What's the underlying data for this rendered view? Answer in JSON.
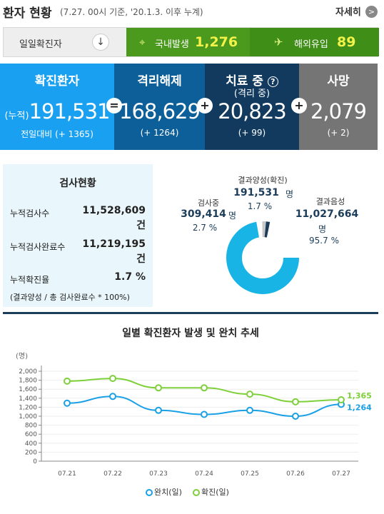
{
  "header": {
    "title": "환자 현황",
    "subtitle": "(7.27. 00시 기준, '20.1.3. 이후 누계)",
    "more_label": "자세히"
  },
  "daily": {
    "label": "일일확진자",
    "domestic_label": "국내발생",
    "domestic_value": "1,276",
    "overseas_label": "해외유입",
    "overseas_value": "89"
  },
  "stats": {
    "confirmed": {
      "title": "확진환자",
      "prefix": "(누적)",
      "value": "191,531",
      "delta": "전일대비 (+ 1365)"
    },
    "released": {
      "title": "격리해제",
      "value": "168,629",
      "delta": "(+ 1264)"
    },
    "treating": {
      "title": "치료 중",
      "subtitle": "(격리 중)",
      "value": "20,823",
      "delta": "(+ 99)"
    },
    "deaths": {
      "title": "사망",
      "value": "2,079",
      "delta": "(+ 2)"
    },
    "ops": [
      "=",
      "+",
      "+"
    ]
  },
  "tests": {
    "title": "검사현황",
    "rows": [
      {
        "label": "누적검사수",
        "value": "11,528,609",
        "unit": "건"
      },
      {
        "label": "누적검사완료수",
        "value": "11,219,195",
        "unit": "건"
      },
      {
        "label": "누적확진율",
        "value": "1.7 %",
        "unit": ""
      }
    ],
    "note": "(결과양성 / 총 검사완료수 * 100%)"
  },
  "donut": {
    "positive": {
      "label": "결과양성(확진)",
      "value": "191,531",
      "unit": "명",
      "pct": "1.7 %"
    },
    "testing": {
      "label": "검사중",
      "value": "309,414",
      "unit": "명",
      "pct": "2.7 %"
    },
    "negative": {
      "label": "결과음성",
      "value": "11,027,664",
      "unit": "명",
      "pct": "95.7 %"
    },
    "colors": {
      "negative": "#19b4e6",
      "testing": "#c8c8c8",
      "positive": "#1c3d5a"
    }
  },
  "chart_data": {
    "type": "line",
    "title": "일별 확진환자 발생 및 완치 추세",
    "unit_label": "(명)",
    "categories": [
      "07.21",
      "07.22",
      "07.23",
      "07.24",
      "07.25",
      "07.26",
      "07.27"
    ],
    "ylim": [
      0,
      2000
    ],
    "yticks": [
      "2,000",
      "1,800",
      "1,600",
      "1,400",
      "1,200",
      "1,000",
      "800",
      "600",
      "400",
      "200",
      "0"
    ],
    "series": [
      {
        "name": "완치(일)",
        "color": "#1aa0e6",
        "values": [
          1290,
          1440,
          1130,
          1040,
          1130,
          1000,
          1264
        ],
        "end_label": "1,264"
      },
      {
        "name": "확진(일)",
        "color": "#7ed03a",
        "values": [
          1780,
          1840,
          1630,
          1630,
          1490,
          1320,
          1365
        ],
        "end_label": "1,365"
      }
    ]
  }
}
